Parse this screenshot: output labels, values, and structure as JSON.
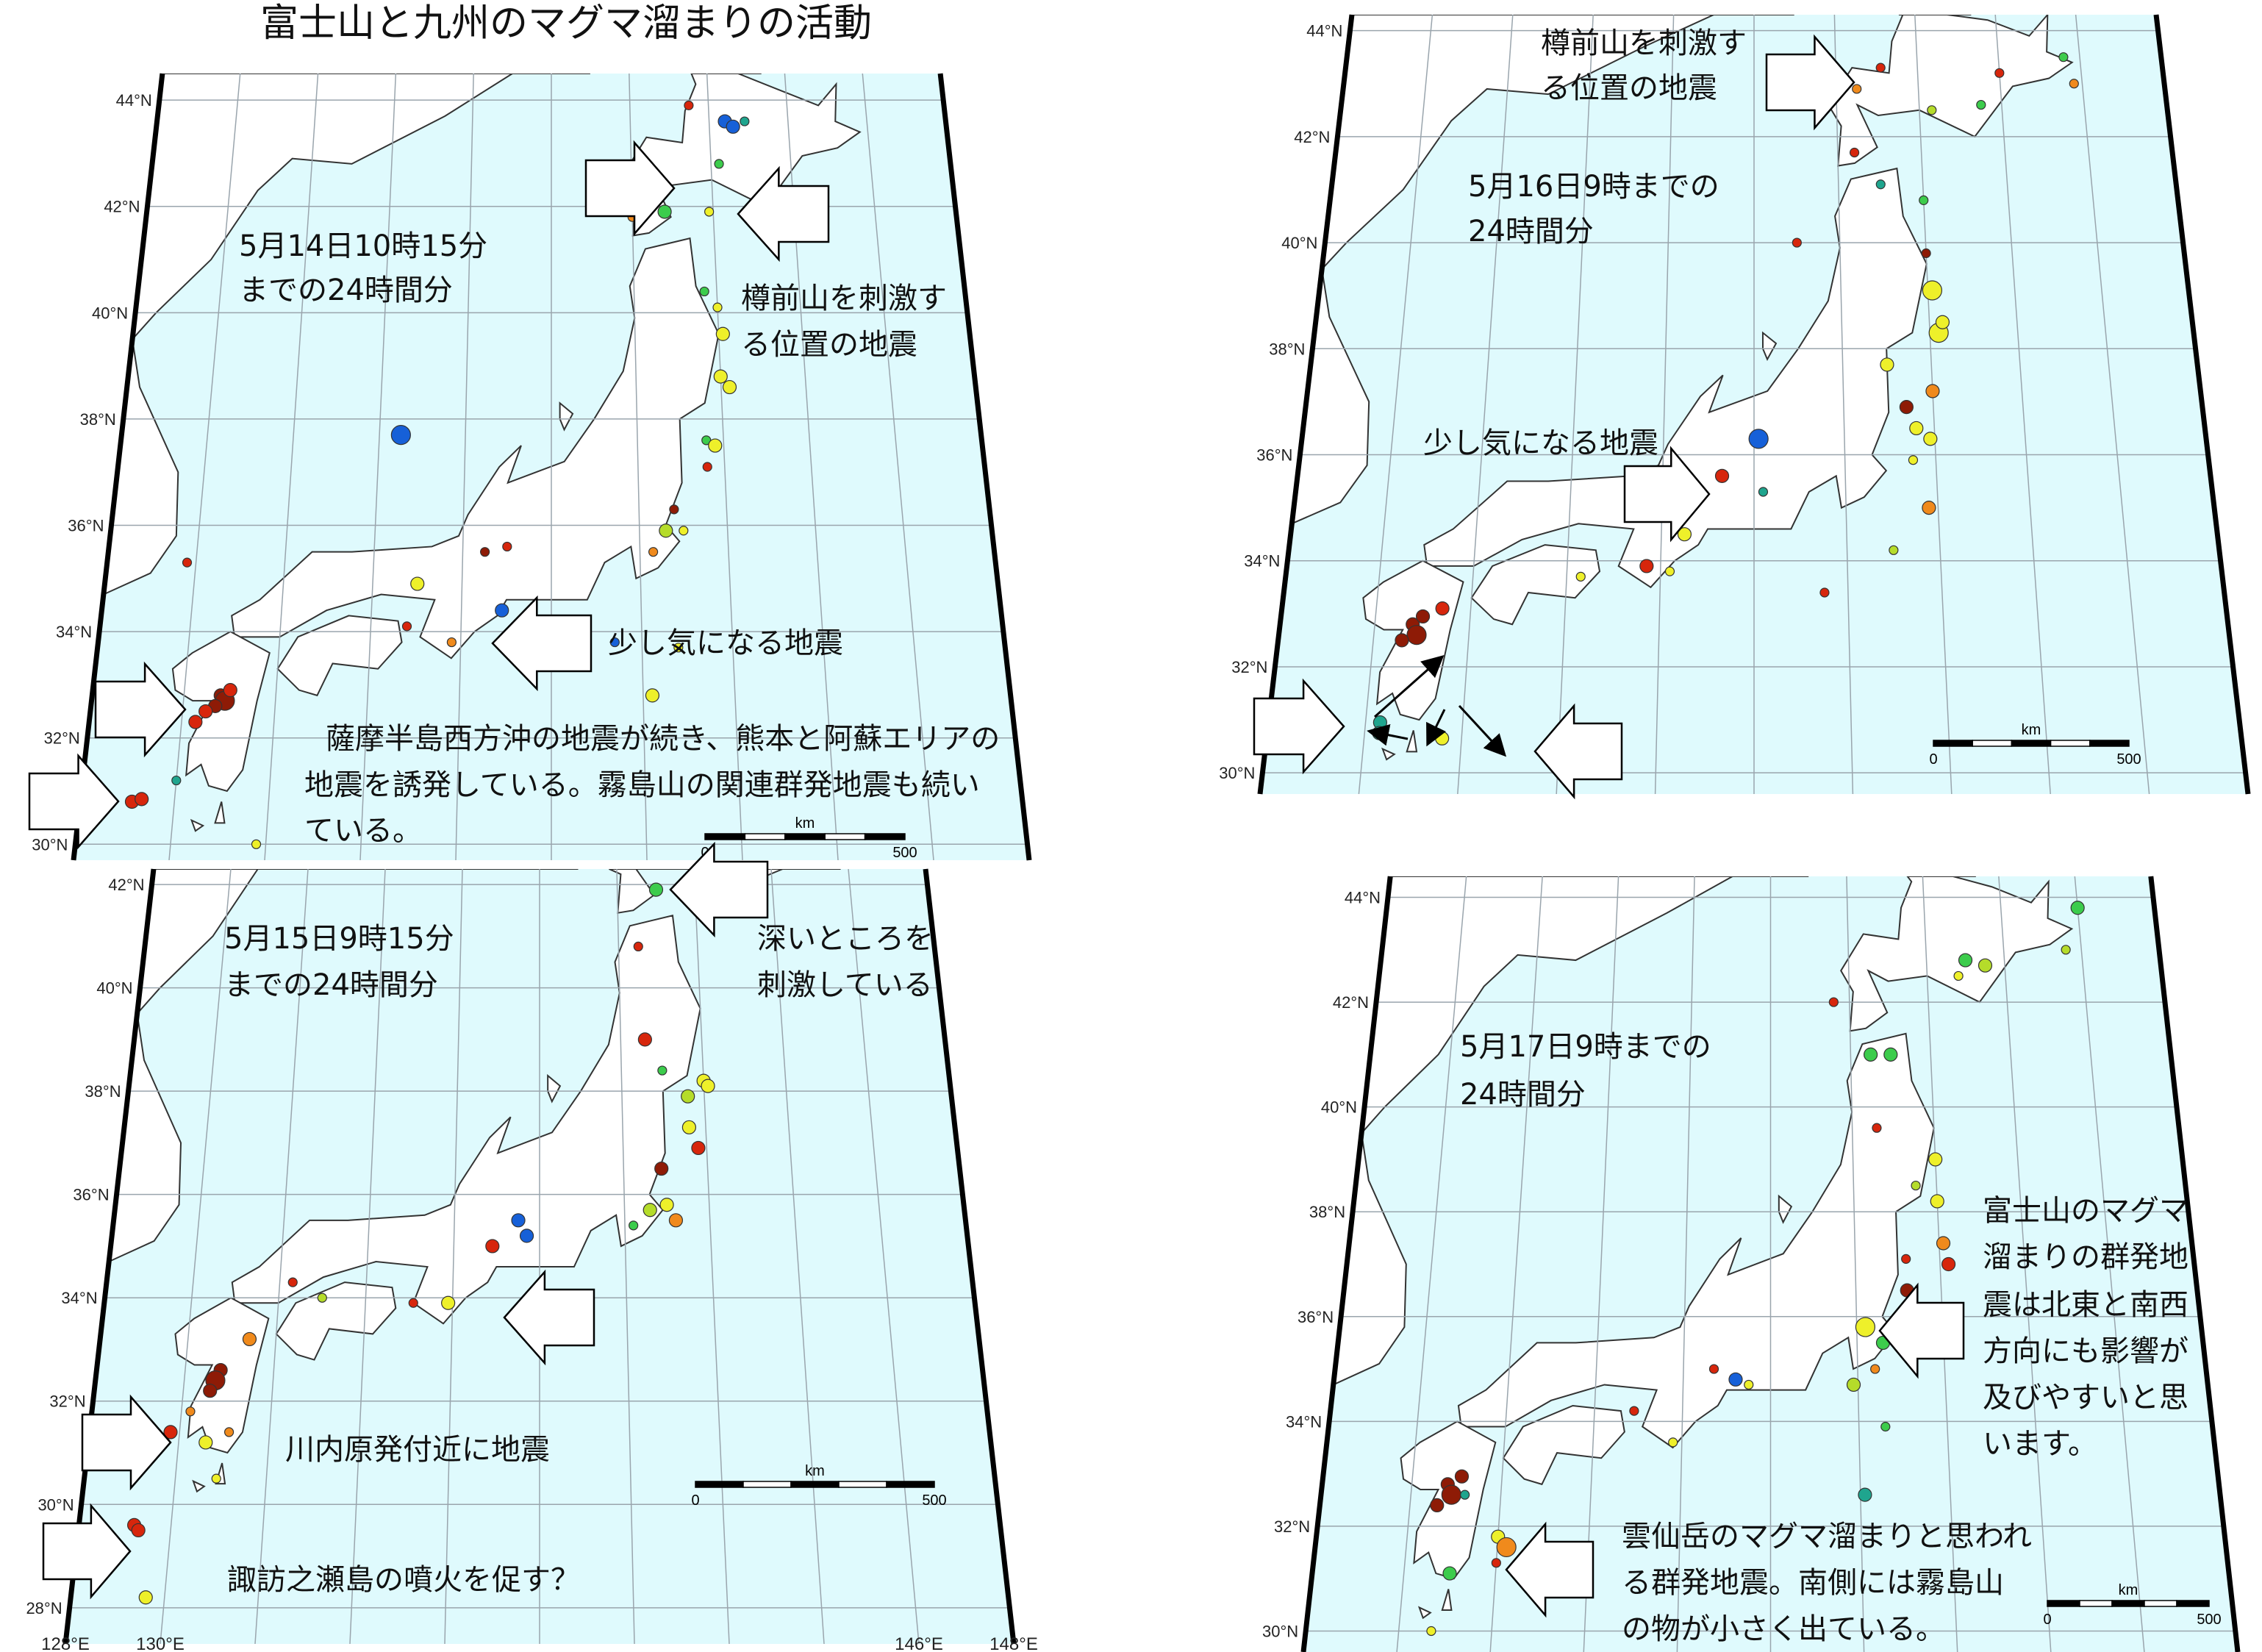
{
  "title": "富士山と九州のマグマ溜まりの活動",
  "depth_colors": {
    "d": "#8e1b06",
    "r": "#d7260c",
    "o": "#f08a1c",
    "y": "#eef02a",
    "l": "#b5dc2a",
    "g": "#3ccc4c",
    "t": "#1fa58e",
    "b": "#1660d8"
  },
  "colors": {
    "sea": "#dffafd",
    "land": "#ffffff",
    "coast": "#333333",
    "grid": "#9aa5ad"
  },
  "scale_bar": {
    "unit": "km",
    "start": "0",
    "end": "500"
  },
  "panels": [
    {
      "id": "may14",
      "caption": [
        "5月14日10時15分",
        "までの24時間分"
      ],
      "annotations": [
        [
          "樽前山を刺激す",
          "る位置の地震"
        ],
        [
          "少し気になる地震"
        ],
        [
          "薩摩半島西方沖の地震が続き、熊本と阿蘇エリアの",
          "地震を誘発している。霧島山の関連群発地震も続い",
          "ている。"
        ]
      ],
      "lat_labels": [
        "44°N",
        "42°N",
        "40°N",
        "38°N",
        "36°N",
        "34°N",
        "32°N",
        "30°N"
      ],
      "lon_labels": [],
      "quakes": [
        [
          140.8,
          41.9,
          2,
          "g"
        ],
        [
          140.0,
          41.8,
          1,
          "o"
        ],
        [
          140.0,
          42.1,
          1,
          "r"
        ],
        [
          142.4,
          43.6,
          2,
          "b"
        ],
        [
          142.6,
          43.5,
          2,
          "b"
        ],
        [
          142.9,
          43.6,
          1,
          "t"
        ],
        [
          141.5,
          43.9,
          1,
          "r"
        ],
        [
          142.2,
          42.8,
          1,
          "g"
        ],
        [
          141.9,
          41.9,
          1,
          "y"
        ],
        [
          134.5,
          37.7,
          3,
          "b"
        ],
        [
          136.9,
          34.4,
          2,
          "b"
        ],
        [
          139.4,
          33.8,
          1,
          "b"
        ],
        [
          141.7,
          40.4,
          1,
          "g"
        ],
        [
          142.0,
          40.1,
          1,
          "y"
        ],
        [
          142.1,
          39.6,
          2,
          "y"
        ],
        [
          142.0,
          38.8,
          2,
          "y"
        ],
        [
          142.2,
          38.6,
          2,
          "y"
        ],
        [
          141.6,
          37.6,
          1,
          "g"
        ],
        [
          141.8,
          37.5,
          2,
          "y"
        ],
        [
          141.6,
          37.1,
          1,
          "r"
        ],
        [
          140.8,
          36.3,
          1,
          "d"
        ],
        [
          140.6,
          35.9,
          2,
          "l"
        ],
        [
          141.0,
          35.9,
          1,
          "y"
        ],
        [
          140.3,
          35.5,
          1,
          "o"
        ],
        [
          137.0,
          35.6,
          1,
          "r"
        ],
        [
          136.5,
          35.5,
          1,
          "d"
        ],
        [
          135.0,
          34.9,
          2,
          "y"
        ],
        [
          134.8,
          34.1,
          1,
          "r"
        ],
        [
          135.8,
          33.8,
          1,
          "o"
        ],
        [
          130.8,
          32.8,
          2,
          "d"
        ],
        [
          130.9,
          32.7,
          3,
          "d"
        ],
        [
          131.0,
          32.9,
          2,
          "r"
        ],
        [
          130.7,
          32.6,
          2,
          "d"
        ],
        [
          130.5,
          32.5,
          2,
          "r"
        ],
        [
          130.3,
          32.3,
          2,
          "r"
        ],
        [
          129.1,
          30.8,
          2,
          "r"
        ],
        [
          129.3,
          30.85,
          2,
          "r"
        ],
        [
          130.0,
          31.2,
          1,
          "t"
        ],
        [
          131.8,
          30.0,
          1,
          "y"
        ],
        [
          129.8,
          35.3,
          1,
          "r"
        ],
        [
          140.2,
          32.8,
          2,
          "y"
        ],
        [
          140.8,
          33.7,
          1,
          "y"
        ]
      ]
    },
    {
      "id": "may16",
      "caption": [
        "5月16日9時までの",
        "24時間分"
      ],
      "annotations": [
        [
          "樽前山を刺激す",
          "る位置の地震"
        ],
        [
          "少し気になる地震"
        ]
      ],
      "lat_labels": [
        "44°N",
        "42°N",
        "40°N",
        "38°N",
        "36°N",
        "34°N",
        "32°N",
        "30°N"
      ],
      "lon_labels": [],
      "quakes": [
        [
          141.1,
          43.3,
          1,
          "r"
        ],
        [
          140.5,
          42.9,
          1,
          "o"
        ],
        [
          144.0,
          43.2,
          1,
          "r"
        ],
        [
          145.6,
          43.5,
          1,
          "g"
        ],
        [
          145.8,
          43.0,
          1,
          "o"
        ],
        [
          143.5,
          42.6,
          1,
          "g"
        ],
        [
          142.3,
          42.5,
          1,
          "l"
        ],
        [
          140.4,
          41.7,
          1,
          "r"
        ],
        [
          141.0,
          41.1,
          1,
          "t"
        ],
        [
          142.0,
          40.8,
          1,
          "g"
        ],
        [
          139.0,
          40.0,
          1,
          "r"
        ],
        [
          142.0,
          39.8,
          1,
          "d"
        ],
        [
          142.1,
          39.1,
          3,
          "y"
        ],
        [
          142.2,
          38.3,
          3,
          "y"
        ],
        [
          142.3,
          38.5,
          2,
          "y"
        ],
        [
          141.0,
          37.7,
          2,
          "y"
        ],
        [
          142.0,
          37.2,
          2,
          "o"
        ],
        [
          141.4,
          36.9,
          2,
          "d"
        ],
        [
          141.6,
          36.5,
          2,
          "y"
        ],
        [
          141.9,
          36.3,
          2,
          "y"
        ],
        [
          141.5,
          35.9,
          1,
          "y"
        ],
        [
          141.8,
          35.0,
          2,
          "o"
        ],
        [
          141.0,
          34.2,
          1,
          "l"
        ],
        [
          138.1,
          36.3,
          3,
          "b"
        ],
        [
          136.3,
          35.5,
          3,
          "r"
        ],
        [
          137.3,
          35.6,
          2,
          "r"
        ],
        [
          138.2,
          35.3,
          1,
          "t"
        ],
        [
          136.5,
          34.5,
          2,
          "y"
        ],
        [
          135.7,
          33.9,
          2,
          "r"
        ],
        [
          136.2,
          33.8,
          1,
          "y"
        ],
        [
          134.3,
          33.7,
          1,
          "y"
        ],
        [
          130.8,
          32.8,
          2,
          "d"
        ],
        [
          130.9,
          32.6,
          3,
          "d"
        ],
        [
          131.0,
          32.95,
          2,
          "d"
        ],
        [
          130.6,
          32.5,
          2,
          "d"
        ],
        [
          131.4,
          33.1,
          2,
          "r"
        ],
        [
          129.0,
          31.0,
          3,
          "r"
        ],
        [
          130.3,
          30.95,
          2,
          "t"
        ],
        [
          130.3,
          30.75,
          2,
          "t"
        ],
        [
          131.6,
          30.65,
          2,
          "y"
        ],
        [
          139.5,
          33.4,
          1,
          "r"
        ]
      ]
    },
    {
      "id": "may15",
      "caption": [
        "5月15日9時15分",
        "までの24時間分"
      ],
      "annotations": [
        [
          "深いところを",
          "刺激している"
        ],
        [
          "川内原発付近に地震"
        ],
        [
          "諏訪之瀬島の噴火を促す？"
        ]
      ],
      "lat_labels": [
        "42°N",
        "40°N",
        "38°N",
        "36°N",
        "34°N",
        "32°N",
        "30°N",
        "28°N"
      ],
      "lon_labels": [
        "128°E",
        "130°E",
        "146°E",
        "148°E"
      ],
      "quakes": [
        [
          141.0,
          41.9,
          2,
          "g"
        ],
        [
          142.6,
          41.9,
          1,
          "o"
        ],
        [
          140.5,
          40.8,
          1,
          "r"
        ],
        [
          140.6,
          39.0,
          2,
          "r"
        ],
        [
          141.0,
          38.4,
          1,
          "g"
        ],
        [
          142.0,
          38.2,
          2,
          "y"
        ],
        [
          142.1,
          38.1,
          2,
          "y"
        ],
        [
          141.6,
          37.9,
          2,
          "l"
        ],
        [
          141.6,
          37.3,
          2,
          "y"
        ],
        [
          141.8,
          36.9,
          2,
          "r"
        ],
        [
          140.9,
          36.5,
          2,
          "d"
        ],
        [
          140.6,
          35.7,
          2,
          "l"
        ],
        [
          141.0,
          35.8,
          2,
          "y"
        ],
        [
          141.2,
          35.5,
          2,
          "o"
        ],
        [
          140.2,
          35.4,
          1,
          "g"
        ],
        [
          137.5,
          35.5,
          2,
          "b"
        ],
        [
          137.7,
          35.2,
          2,
          "b"
        ],
        [
          136.9,
          35.0,
          2,
          "r"
        ],
        [
          135.9,
          33.9,
          2,
          "y"
        ],
        [
          135.1,
          33.9,
          1,
          "r"
        ],
        [
          133.0,
          34.0,
          1,
          "l"
        ],
        [
          131.4,
          33.2,
          2,
          "o"
        ],
        [
          130.8,
          32.6,
          2,
          "d"
        ],
        [
          130.7,
          32.4,
          3,
          "d"
        ],
        [
          130.6,
          32.2,
          2,
          "d"
        ],
        [
          130.2,
          31.8,
          1,
          "o"
        ],
        [
          129.8,
          31.4,
          2,
          "r"
        ],
        [
          130.6,
          31.2,
          2,
          "y"
        ],
        [
          131.1,
          31.4,
          1,
          "o"
        ],
        [
          129.2,
          29.6,
          2,
          "r"
        ],
        [
          129.3,
          29.5,
          2,
          "r"
        ],
        [
          129.6,
          28.2,
          2,
          "y"
        ],
        [
          132.3,
          34.3,
          1,
          "r"
        ],
        [
          139.1,
          34.0,
          2,
          "y"
        ],
        [
          130.9,
          30.5,
          1,
          "y"
        ]
      ]
    },
    {
      "id": "may17",
      "caption": [
        "5月17日9時までの",
        "24時間分"
      ],
      "annotations": [
        [
          "富士山のマグマ",
          "溜まりの群発地",
          "震は北東と南西",
          "方向にも影響が",
          "及びやすいと思",
          "います。"
        ],
        [
          "雲仙岳のマグマ溜まりと思われ",
          "る群発地震。南側には霧島山",
          "の物が小さく出ている。"
        ]
      ],
      "lat_labels": [
        "44°N",
        "42°N",
        "40°N",
        "38°N",
        "36°N",
        "34°N",
        "32°N",
        "30°N"
      ],
      "lon_labels": [],
      "quakes": [
        [
          146.0,
          43.8,
          2,
          "g"
        ],
        [
          145.6,
          43.0,
          1,
          "l"
        ],
        [
          143.5,
          42.7,
          2,
          "l"
        ],
        [
          143.0,
          42.8,
          2,
          "g"
        ],
        [
          142.8,
          42.5,
          1,
          "y"
        ],
        [
          139.6,
          42.0,
          1,
          "r"
        ],
        [
          140.5,
          41.0,
          2,
          "g"
        ],
        [
          141.0,
          41.0,
          2,
          "g"
        ],
        [
          140.6,
          39.6,
          1,
          "r"
        ],
        [
          142.0,
          39.0,
          2,
          "y"
        ],
        [
          141.5,
          38.5,
          1,
          "l"
        ],
        [
          142.0,
          38.2,
          2,
          "y"
        ],
        [
          142.1,
          37.4,
          2,
          "o"
        ],
        [
          142.2,
          37.0,
          2,
          "r"
        ],
        [
          141.2,
          37.1,
          1,
          "r"
        ],
        [
          141.2,
          36.5,
          2,
          "d"
        ],
        [
          140.2,
          35.8,
          3,
          "y"
        ],
        [
          140.6,
          35.5,
          2,
          "g"
        ],
        [
          141.3,
          35.5,
          2,
          "r"
        ],
        [
          141.5,
          35.6,
          2,
          "y"
        ],
        [
          140.4,
          35.0,
          1,
          "o"
        ],
        [
          139.9,
          34.7,
          2,
          "l"
        ],
        [
          140.6,
          33.9,
          1,
          "g"
        ],
        [
          137.2,
          34.8,
          2,
          "b"
        ],
        [
          136.7,
          35.0,
          1,
          "r"
        ],
        [
          137.5,
          34.7,
          1,
          "y"
        ],
        [
          134.9,
          34.2,
          1,
          "r"
        ],
        [
          135.8,
          33.6,
          1,
          "y"
        ],
        [
          140.1,
          32.6,
          2,
          "t"
        ],
        [
          130.8,
          32.8,
          2,
          "d"
        ],
        [
          130.9,
          32.6,
          3,
          "d"
        ],
        [
          131.1,
          32.95,
          2,
          "d"
        ],
        [
          130.6,
          32.4,
          2,
          "d"
        ],
        [
          131.2,
          32.6,
          1,
          "t"
        ],
        [
          132.0,
          31.8,
          2,
          "y"
        ],
        [
          132.2,
          31.6,
          3,
          "o"
        ],
        [
          132.0,
          31.3,
          1,
          "r"
        ],
        [
          131.0,
          31.1,
          2,
          "g"
        ],
        [
          130.7,
          30.0,
          1,
          "y"
        ]
      ]
    }
  ]
}
